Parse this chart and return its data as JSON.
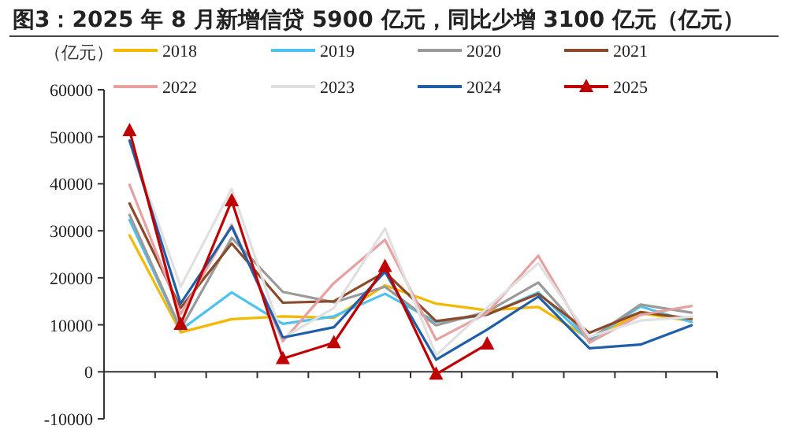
{
  "chart_data": {
    "type": "line",
    "title": "图3：2025 年 8 月新增信贷 5900 亿元，同比少增 3100 亿元（亿元）",
    "ylabel": "（亿元）",
    "categories": [
      null,
      null,
      null,
      null,
      null,
      null,
      null,
      null,
      null,
      null,
      null,
      null
    ],
    "ylim": [
      -10000,
      60000
    ],
    "yticks": [
      -10000,
      0,
      10000,
      20000,
      30000,
      40000,
      50000,
      60000
    ],
    "legend": "top",
    "series": [
      {
        "name": "2018",
        "color": "#f5b800",
        "values": [
          29000,
          8400,
          11200,
          11800,
          11500,
          18400,
          14500,
          13100,
          13800,
          7000,
          12500,
          10800
        ]
      },
      {
        "name": "2019",
        "color": "#4fc3f0",
        "values": [
          32300,
          8900,
          16900,
          10200,
          11800,
          16600,
          10600,
          12100,
          16900,
          6600,
          13900,
          10600
        ]
      },
      {
        "name": "2020",
        "color": "#9a9a9a",
        "values": [
          33400,
          9100,
          28500,
          17000,
          14800,
          18100,
          9900,
          12800,
          19000,
          6900,
          14300,
          12600
        ]
      },
      {
        "name": "2021",
        "color": "#8b4a2a",
        "values": [
          35800,
          13600,
          27300,
          14700,
          15000,
          21200,
          10800,
          12200,
          16600,
          8300,
          12700,
          11300
        ]
      },
      {
        "name": "2022",
        "color": "#e8a0a0",
        "values": [
          39800,
          12300,
          31300,
          6500,
          18900,
          28100,
          6800,
          12500,
          24700,
          6200,
          12100,
          14000
        ]
      },
      {
        "name": "2023",
        "color": "#e0e0e0",
        "values": [
          49000,
          18100,
          38900,
          7200,
          13600,
          30500,
          3500,
          13600,
          23100,
          7400,
          10900,
          11700
        ]
      },
      {
        "name": "2024",
        "color": "#1f5fa8",
        "values": [
          49200,
          14500,
          30900,
          7300,
          9500,
          21300,
          2600,
          9000,
          16000,
          5000,
          5800,
          9900
        ]
      },
      {
        "name": "2025",
        "color": "#c00000",
        "marker": "triangle",
        "values": [
          51300,
          10100,
          36400,
          2800,
          6200,
          22400,
          -500,
          5900,
          null,
          null,
          null,
          null
        ]
      }
    ]
  }
}
